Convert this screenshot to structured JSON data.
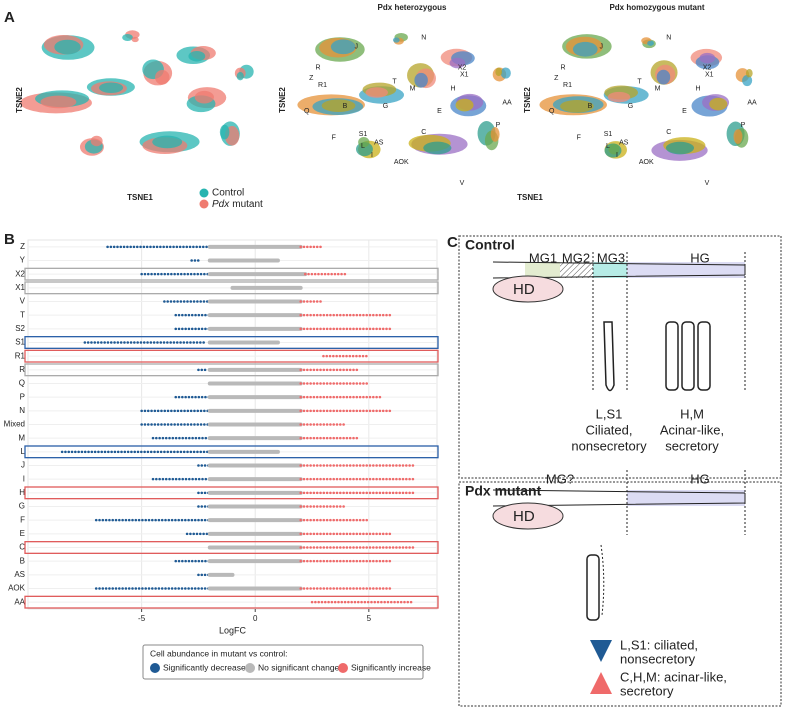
{
  "panel_labels": [
    "A",
    "B",
    "C"
  ],
  "panel_a": {
    "x_label": "TSNE1",
    "y_label": "TSNE2",
    "titles": [
      "Pdx heterozygous",
      "Pdx homozygous mutant"
    ],
    "legend": [
      {
        "label": "Control",
        "color": "#27b4b0"
      },
      {
        "italic": "Pdx",
        "label": "mutant",
        "color": "#ef7b70"
      }
    ],
    "clusters": [
      "N",
      "J",
      "R",
      "Z",
      "R1",
      "Q",
      "B",
      "G",
      "T",
      "M",
      "X2",
      "X1",
      "H",
      "E",
      "AA",
      "P",
      "F",
      "S1",
      "AS",
      "C",
      "AOK",
      "V",
      "L",
      "I"
    ]
  },
  "chart_data": {
    "type": "strip",
    "xlabel": "LogFC",
    "categories": [
      "Z",
      "Y",
      "X2",
      "X1",
      "V",
      "T",
      "S2",
      "S1",
      "R1",
      "R",
      "Q",
      "P",
      "N",
      "Mixed",
      "M",
      "L",
      "J",
      "I",
      "H",
      "G",
      "F",
      "E",
      "C",
      "B",
      "AS",
      "AOK",
      "AA"
    ],
    "xlim": [
      -10,
      8
    ],
    "xticks": [
      -5,
      0,
      5
    ],
    "grid": true,
    "legend_title": "Cell abundance in mutant vs control:",
    "series": [
      {
        "name": "Significantly decrease",
        "color": "#1f5a94",
        "ranges": [
          [
            -6.5,
            -2
          ],
          [
            -2.8,
            -2.5
          ],
          [
            -5,
            -2
          ],
          null,
          [
            -4,
            -2
          ],
          [
            -3.5,
            -2
          ],
          [
            -3.5,
            -2
          ],
          [
            -7.5,
            -2.2
          ],
          null,
          [
            -2.5,
            -2.2
          ],
          null,
          [
            -3.5,
            -2
          ],
          [
            -5,
            -2
          ],
          [
            -5,
            -2
          ],
          [
            -4.5,
            -2
          ],
          [
            -8.5,
            -2
          ],
          [
            -2.5,
            -2
          ],
          [
            -4.5,
            -2
          ],
          [
            -2.5,
            -2
          ],
          [
            -2.5,
            -2
          ],
          [
            -7,
            -2
          ],
          [
            -3,
            -2
          ],
          null,
          [
            -3.5,
            -2
          ],
          [
            -2.5,
            -2
          ],
          [
            -7,
            -2
          ],
          null
        ]
      },
      {
        "name": "No significant change",
        "color": "#b9b9b9",
        "ranges": [
          [
            -2,
            2
          ],
          [
            -2,
            1
          ],
          [
            -2,
            2.2
          ],
          [
            -1,
            2
          ],
          [
            -2,
            2
          ],
          [
            -2,
            2
          ],
          [
            -2,
            2
          ],
          [
            -2,
            1
          ],
          null,
          [
            -2,
            2
          ],
          [
            -2,
            2
          ],
          [
            -2,
            2
          ],
          [
            -2,
            2
          ],
          [
            -2,
            2
          ],
          [
            -2,
            2
          ],
          [
            -2,
            1
          ],
          [
            -2,
            2
          ],
          [
            -2,
            2
          ],
          [
            -2,
            2
          ],
          [
            -2,
            2
          ],
          [
            -2,
            2
          ],
          [
            -2,
            2
          ],
          [
            -2,
            2
          ],
          [
            -2,
            2
          ],
          [
            -2,
            -1
          ],
          [
            -2,
            2
          ],
          null
        ]
      },
      {
        "name": "Significantly increase",
        "color": "#ef6a6a",
        "ranges": [
          [
            2,
            3
          ],
          null,
          [
            2.2,
            4
          ],
          null,
          [
            2,
            3
          ],
          [
            2,
            6
          ],
          [
            2,
            6
          ],
          null,
          [
            3,
            5
          ],
          [
            2,
            4.5
          ],
          [
            2,
            5
          ],
          [
            2,
            5.5
          ],
          [
            2,
            6
          ],
          [
            2,
            4
          ],
          [
            2,
            4.5
          ],
          null,
          [
            2,
            7
          ],
          [
            2,
            7
          ],
          [
            2,
            7
          ],
          [
            2,
            4
          ],
          [
            2,
            5
          ],
          [
            2,
            6
          ],
          [
            2,
            7
          ],
          [
            2,
            6
          ],
          null,
          [
            2,
            6
          ],
          [
            2.5,
            7
          ]
        ]
      }
    ],
    "highlights": [
      {
        "category": "X2",
        "color": "#aaaaaa"
      },
      {
        "category": "X1",
        "color": "#aaaaaa"
      },
      {
        "category": "S1",
        "color": "#2a5fa8"
      },
      {
        "category": "R1",
        "color": "#e05a5a"
      },
      {
        "category": "R",
        "color": "#aaaaaa"
      },
      {
        "category": "L",
        "color": "#2a5fa8"
      },
      {
        "category": "H",
        "color": "#e05a5a"
      },
      {
        "category": "C",
        "color": "#e05a5a"
      },
      {
        "category": "AA",
        "color": "#e05a5a"
      }
    ]
  },
  "panel_c": {
    "control": {
      "title": "Control",
      "regions": [
        "MG1",
        "MG2",
        "MG3",
        "HG"
      ],
      "hd": "HD",
      "cells": [
        {
          "label": "L,S1",
          "lines": [
            "Ciliated,",
            "nonsecretory"
          ]
        },
        {
          "label": "H,M",
          "lines": [
            "Acinar-like,",
            "secretory"
          ]
        }
      ]
    },
    "mutant": {
      "title": "Pdx mutant",
      "regions": [
        "MG?",
        "HG"
      ],
      "hd": "HD"
    },
    "legend": [
      {
        "lines": [
          "L,S1: ciliated,",
          "nonsecretory"
        ],
        "color": "#1f5a94"
      },
      {
        "lines": [
          "C,H,M: acinar-like,",
          "secretory"
        ],
        "color": "#ef6a6a"
      }
    ]
  }
}
